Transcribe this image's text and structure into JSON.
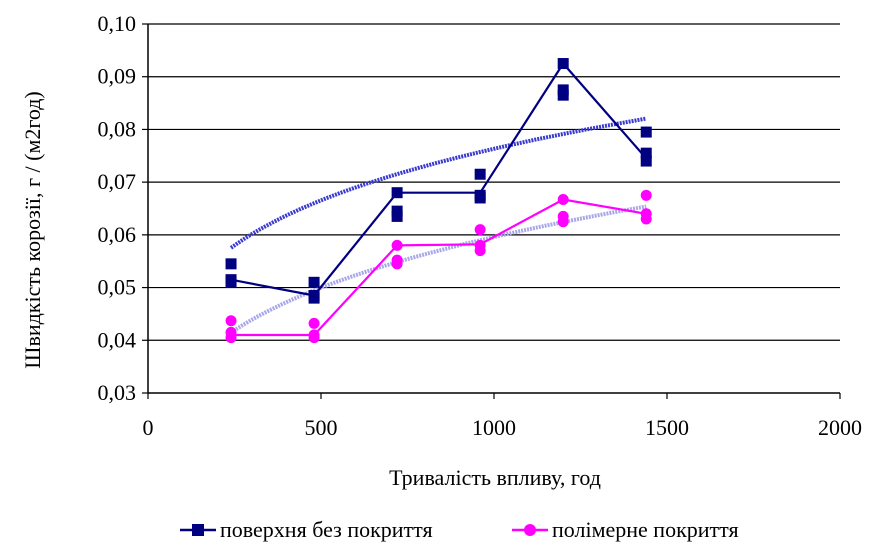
{
  "chart_data": {
    "type": "scatter",
    "title": "",
    "xlabel": "Тривалість впливу, год",
    "ylabel": "Швидкість корозії, г / (м2год)",
    "xlim": [
      0,
      2000
    ],
    "ylim": [
      0.03,
      0.1
    ],
    "x_ticks": [
      "0",
      "500",
      "1000",
      "1500",
      "2000"
    ],
    "y_ticks": [
      "0,03",
      "0,04",
      "0,05",
      "0,06",
      "0,07",
      "0,08",
      "0,09",
      "0,10"
    ],
    "grid": "horizontal",
    "legend_position": "bottom",
    "series": [
      {
        "name": "поверхня без покриття",
        "color": "#000080",
        "marker": "square",
        "line": [
          {
            "x": 240,
            "y": 0.0515
          },
          {
            "x": 480,
            "y": 0.0485
          },
          {
            "x": 720,
            "y": 0.068
          },
          {
            "x": 960,
            "y": 0.068
          },
          {
            "x": 1200,
            "y": 0.0925
          },
          {
            "x": 1440,
            "y": 0.0745
          }
        ],
        "points": [
          {
            "x": 240,
            "y": 0.0545
          },
          {
            "x": 240,
            "y": 0.0515
          },
          {
            "x": 240,
            "y": 0.051
          },
          {
            "x": 480,
            "y": 0.051
          },
          {
            "x": 480,
            "y": 0.0485
          },
          {
            "x": 480,
            "y": 0.048
          },
          {
            "x": 720,
            "y": 0.068
          },
          {
            "x": 720,
            "y": 0.0645
          },
          {
            "x": 720,
            "y": 0.0635
          },
          {
            "x": 960,
            "y": 0.0715
          },
          {
            "x": 960,
            "y": 0.0675
          },
          {
            "x": 960,
            "y": 0.067
          },
          {
            "x": 1200,
            "y": 0.0925
          },
          {
            "x": 1200,
            "y": 0.0875
          },
          {
            "x": 1200,
            "y": 0.0865
          },
          {
            "x": 1440,
            "y": 0.0795
          },
          {
            "x": 1440,
            "y": 0.0755
          },
          {
            "x": 1440,
            "y": 0.074
          }
        ],
        "trend": {
          "color": "#3a3ad0",
          "coef": 0.01944,
          "exponent": 0.198
        }
      },
      {
        "name": "полімерне покриття",
        "color": "#ff00ff",
        "marker": "circle",
        "line": [
          {
            "x": 240,
            "y": 0.041
          },
          {
            "x": 480,
            "y": 0.041
          },
          {
            "x": 720,
            "y": 0.058
          },
          {
            "x": 960,
            "y": 0.0582
          },
          {
            "x": 1200,
            "y": 0.0667
          },
          {
            "x": 1440,
            "y": 0.064
          }
        ],
        "points": [
          {
            "x": 240,
            "y": 0.0437
          },
          {
            "x": 240,
            "y": 0.0415
          },
          {
            "x": 240,
            "y": 0.0405
          },
          {
            "x": 480,
            "y": 0.0432
          },
          {
            "x": 480,
            "y": 0.041
          },
          {
            "x": 480,
            "y": 0.0405
          },
          {
            "x": 720,
            "y": 0.058
          },
          {
            "x": 720,
            "y": 0.0552
          },
          {
            "x": 720,
            "y": 0.0545
          },
          {
            "x": 960,
            "y": 0.061
          },
          {
            "x": 960,
            "y": 0.058
          },
          {
            "x": 960,
            "y": 0.057
          },
          {
            "x": 1200,
            "y": 0.0667
          },
          {
            "x": 1200,
            "y": 0.0635
          },
          {
            "x": 1200,
            "y": 0.0625
          },
          {
            "x": 1440,
            "y": 0.0675
          },
          {
            "x": 1440,
            "y": 0.064
          },
          {
            "x": 1440,
            "y": 0.063
          }
        ],
        "trend": {
          "color": "#a8a8e8",
          "coef": 0.01031,
          "exponent": 0.254
        }
      }
    ]
  }
}
